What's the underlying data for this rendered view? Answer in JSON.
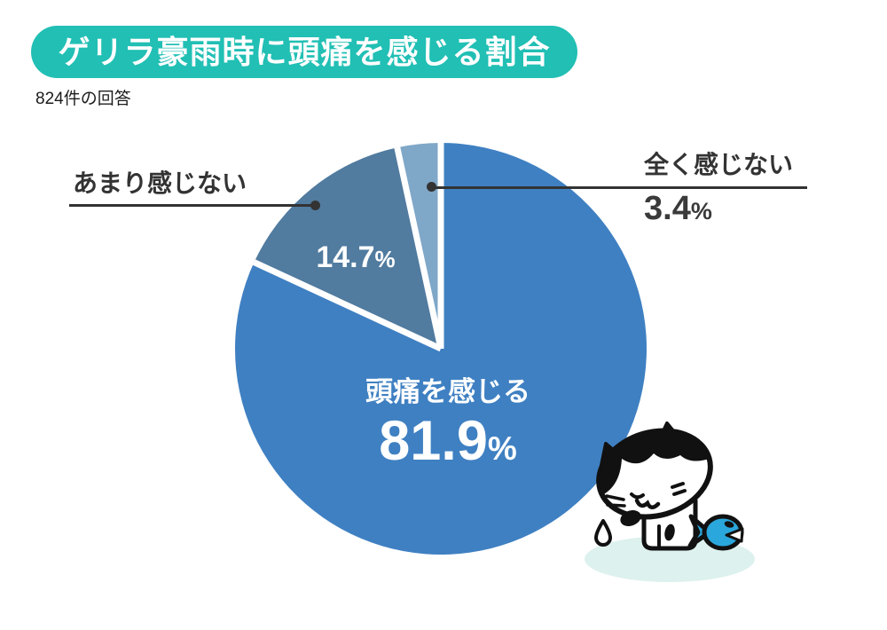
{
  "theme": {
    "banner": "#21bfb4",
    "text_dark": "#333333",
    "leader": "#333333"
  },
  "header": {
    "title": "ゲリラ豪雨時に頭痛を感じる割合",
    "subtitle": "824件の回答"
  },
  "chart_data": {
    "type": "pie",
    "title": "ゲリラ豪雨時に頭痛を感じる割合",
    "subtitle": "824件の回答",
    "unit": "%",
    "start_angle_deg": 0,
    "direction": "clockwise",
    "separator_color": "#ffffff",
    "leader_line_color": "#333333",
    "slices": [
      {
        "label": "頭痛を感じる",
        "value": 81.9,
        "color": "#3f80c2",
        "label_position": "inside-center"
      },
      {
        "label": "あまり感じない",
        "value": 14.7,
        "color": "#517b9f",
        "label_position": "outside-left"
      },
      {
        "label": "全く感じない",
        "value": 3.4,
        "color": "#7fa7c8",
        "label_position": "outside-right"
      }
    ]
  },
  "illustration": {
    "alt": "white cat with black patches crying next to a blue fish"
  }
}
